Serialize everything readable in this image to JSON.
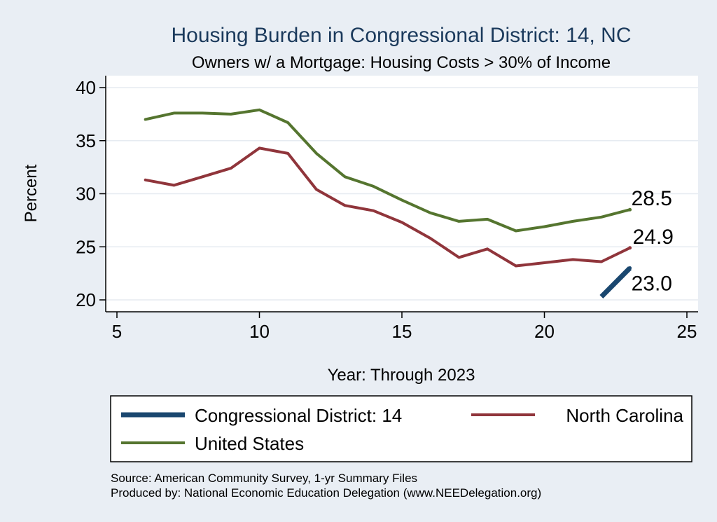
{
  "chart_data": {
    "type": "line",
    "title": "Housing Burden in Congressional District:  14, NC",
    "subtitle": "Owners w/ a Mortgage: Housing Costs > 30% of Income",
    "xlabel": "Year: Through 2023",
    "ylabel": "Percent",
    "xlim": [
      5,
      25
    ],
    "ylim": [
      20,
      40
    ],
    "xticks": [
      5,
      10,
      15,
      20,
      25
    ],
    "yticks": [
      20,
      25,
      30,
      35,
      40
    ],
    "grid": true,
    "series": [
      {
        "name": "Congressional District:  14",
        "color": "#1a476f",
        "x": [
          22,
          23
        ],
        "values": [
          20.3,
          23.0
        ],
        "end_label": "23.0"
      },
      {
        "name": "North Carolina",
        "color": "#90353b",
        "x": [
          6,
          7,
          8,
          9,
          10,
          11,
          12,
          13,
          14,
          15,
          16,
          17,
          18,
          19,
          20,
          21,
          22,
          23
        ],
        "values": [
          31.3,
          30.8,
          31.6,
          32.4,
          34.3,
          33.8,
          30.4,
          28.9,
          28.4,
          27.3,
          25.8,
          24.0,
          24.8,
          23.2,
          23.5,
          23.8,
          23.6,
          24.9
        ],
        "end_label": "24.9"
      },
      {
        "name": "United States",
        "color": "#55752f",
        "x": [
          6,
          7,
          8,
          9,
          10,
          11,
          12,
          13,
          14,
          15,
          16,
          17,
          18,
          19,
          20,
          21,
          22,
          23
        ],
        "values": [
          37.0,
          37.6,
          37.6,
          37.5,
          37.9,
          36.7,
          33.8,
          31.6,
          30.7,
          29.4,
          28.2,
          27.4,
          27.6,
          26.5,
          26.9,
          27.4,
          27.8,
          28.5
        ],
        "end_label": "28.5"
      }
    ],
    "legend": {
      "position": "bottom",
      "items": [
        "Congressional District:  14",
        "North Carolina",
        "United States"
      ]
    },
    "source_note": "Source: American Community Survey, 1-yr Summary Files",
    "producer_note": "Produced by: National Economic Education Delegation (www.NEEDelegation.org)"
  }
}
